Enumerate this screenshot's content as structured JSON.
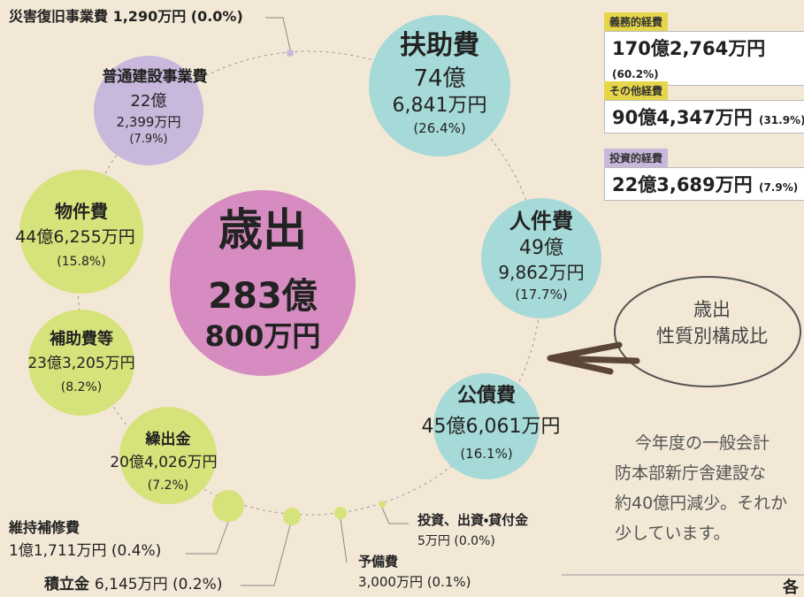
{
  "center": {
    "title": "歳出",
    "amount_oku": "283億",
    "amount_man": "800万円"
  },
  "items": [
    {
      "name": "扶助費",
      "lines": [
        "74億",
        "6,841万円",
        "(26.4%)"
      ]
    },
    {
      "name": "人件費",
      "lines": [
        "49億",
        "9,862万円",
        "(17.7%)"
      ]
    },
    {
      "name": "公債費",
      "lines": [
        "45億6,061万円",
        "(16.1%)"
      ]
    },
    {
      "name": "普通建設事業費",
      "lines": [
        "22億",
        "2,399万円",
        "(7.9%)"
      ]
    },
    {
      "name": "物件費",
      "lines": [
        "44億6,255万円",
        "(15.8%)"
      ]
    },
    {
      "name": "補助費等",
      "lines": [
        "23億3,205万円",
        "(8.2%)"
      ]
    },
    {
      "name": "繰出金",
      "lines": [
        "20億4,026万円",
        "(7.2%)"
      ]
    },
    {
      "name": "災害復旧事業費",
      "lines": [
        "1,290万円 (0.0%)"
      ]
    },
    {
      "name": "維持補修費",
      "lines": [
        "1億1,711万円 (0.4%)"
      ]
    },
    {
      "name": "積立金",
      "lines": [
        "6,145万円 (0.2%)"
      ]
    },
    {
      "name": "予備費",
      "lines": [
        "3,000万円 (0.1%)"
      ]
    },
    {
      "name": "投資、出資・貸付金",
      "lines": [
        "5万円 (0.0%)"
      ]
    }
  ],
  "summary": [
    {
      "label": "義務的経費",
      "amount": "170億2,764万円",
      "pct": "(60.2%)"
    },
    {
      "label": "その他経費",
      "amount": "90億4,347万円",
      "pct": "(31.9%)"
    },
    {
      "label": "投資的経費",
      "amount": "22億3,689万円",
      "pct": "(7.9%)"
    }
  ],
  "callout": {
    "lines": [
      "歳出",
      "性質別構成比"
    ]
  },
  "text": {
    "lines": [
      "今年度の一般会計",
      "防本部新庁舎建設な",
      "約40億円減少。それか",
      "少しています。"
    ]
  },
  "footer": "各"
}
